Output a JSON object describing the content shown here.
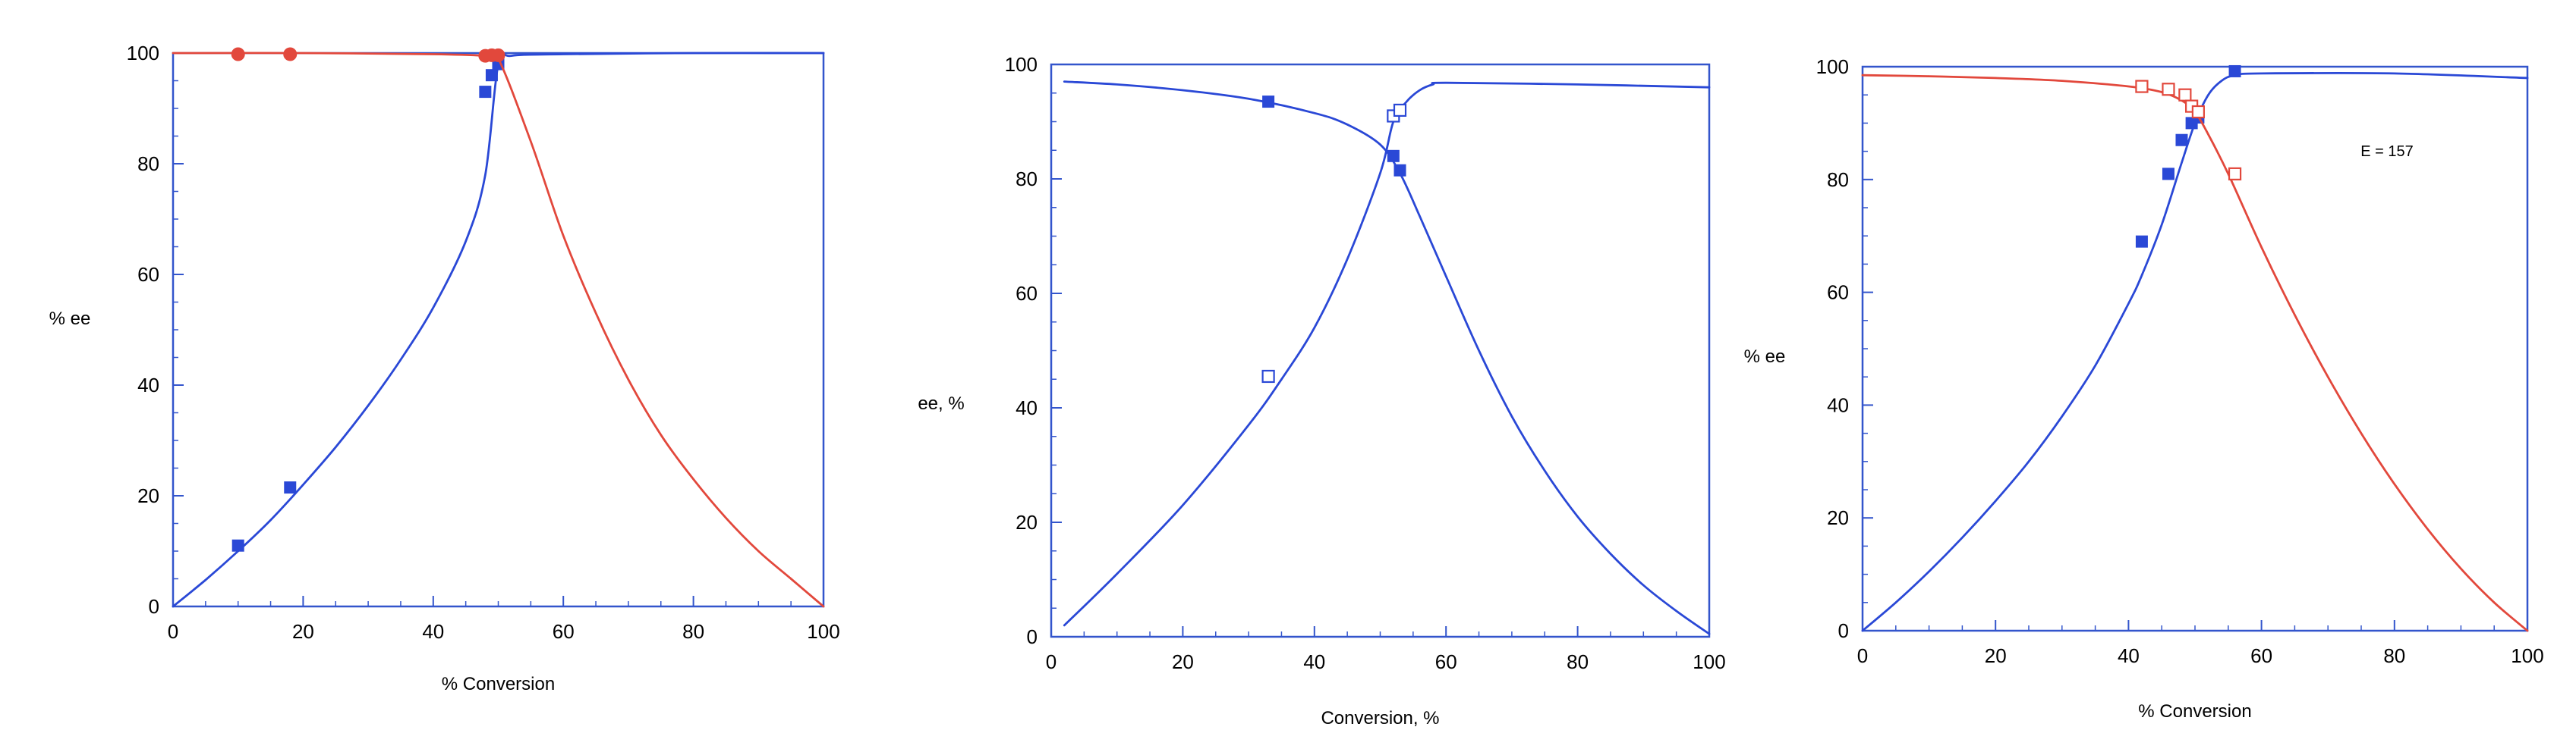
{
  "chart_data": [
    {
      "type": "line",
      "xlabel": "%  Conversion",
      "ylabel": "% ee",
      "xlim": [
        0,
        100
      ],
      "ylim": [
        0,
        100
      ],
      "xticks": [
        "0",
        "20",
        "40",
        "60",
        "80",
        "100"
      ],
      "yticks": [
        "0",
        "20",
        "40",
        "60",
        "80",
        "100"
      ],
      "grid": false,
      "colors": {
        "axis": "#3355cc",
        "blue": "#2a48d6",
        "red": "#e2483c"
      },
      "series": [
        {
          "color": "#2a48d6",
          "curve": [
            [
              0,
              0
            ],
            [
              5,
              4.8
            ],
            [
              10,
              10
            ],
            [
              15,
              15.6
            ],
            [
              20,
              22
            ],
            [
              25,
              28.8
            ],
            [
              30,
              36.3
            ],
            [
              35,
              44.6
            ],
            [
              40,
              54
            ],
            [
              45,
              66
            ],
            [
              48,
              78
            ],
            [
              50,
              98
            ],
            [
              52,
              99.5
            ],
            [
              60,
              99.8
            ],
            [
              80,
              100
            ],
            [
              100,
              100
            ]
          ],
          "markers": {
            "shape": "square-filled",
            "points": [
              [
                10,
                11
              ],
              [
                18,
                21.5
              ],
              [
                48,
                93
              ],
              [
                49,
                96
              ],
              [
                50,
                98
              ]
            ]
          }
        },
        {
          "color": "#e2483c",
          "curve": [
            [
              0,
              100
            ],
            [
              20,
              100
            ],
            [
              40,
              99.8
            ],
            [
              48,
              99.5
            ],
            [
              50,
              99
            ],
            [
              55,
              84
            ],
            [
              60,
              67
            ],
            [
              65,
              53
            ],
            [
              70,
              41
            ],
            [
              75,
              31
            ],
            [
              80,
              23
            ],
            [
              85,
              16
            ],
            [
              90,
              10
            ],
            [
              95,
              5
            ],
            [
              100,
              0
            ]
          ],
          "markers": {
            "shape": "circle-filled",
            "points": [
              [
                10,
                99.8
              ],
              [
                18,
                99.8
              ],
              [
                48,
                99.5
              ],
              [
                49,
                99.6
              ],
              [
                50,
                99.6
              ]
            ]
          }
        }
      ]
    },
    {
      "type": "line",
      "xlabel": "Conversion,  %",
      "ylabel": "ee,  %",
      "xlim": [
        0,
        100
      ],
      "ylim": [
        0,
        100
      ],
      "xticks": [
        "0",
        "20",
        "40",
        "60",
        "80",
        "100"
      ],
      "yticks": [
        "0",
        "20",
        "40",
        "60",
        "80",
        "100"
      ],
      "grid": false,
      "colors": {
        "axis": "#3355cc",
        "blue": "#2a48d6"
      },
      "series": [
        {
          "color": "#2a48d6",
          "curve": [
            [
              2,
              97
            ],
            [
              10,
              96.5
            ],
            [
              20,
              95.5
            ],
            [
              30,
              94
            ],
            [
              40,
              91.5
            ],
            [
              45,
              89.5
            ],
            [
              50,
              86
            ],
            [
              53,
              81
            ],
            [
              56,
              73.5
            ],
            [
              60,
              63
            ],
            [
              65,
              50
            ],
            [
              70,
              38.5
            ],
            [
              75,
              29
            ],
            [
              80,
              21
            ],
            [
              85,
              14.5
            ],
            [
              90,
              9
            ],
            [
              95,
              4.5
            ],
            [
              100,
              0.5
            ]
          ],
          "markers": {
            "shape": "square-filled",
            "points": [
              [
                33,
                93.5
              ],
              [
                52,
                84
              ],
              [
                53,
                81.5
              ]
            ]
          }
        },
        {
          "color": "#2a48d6",
          "curve": [
            [
              2,
              2
            ],
            [
              10,
              11
            ],
            [
              20,
              23
            ],
            [
              30,
              37
            ],
            [
              35,
              45
            ],
            [
              40,
              54
            ],
            [
              45,
              66
            ],
            [
              50,
              81
            ],
            [
              52,
              90
            ],
            [
              54,
              93.5
            ],
            [
              56,
              95.5
            ],
            [
              58,
              96.5
            ],
            [
              60,
              96.8
            ],
            [
              80,
              96.5
            ],
            [
              100,
              96
            ]
          ],
          "markers": {
            "shape": "square-open",
            "points": [
              [
                33,
                45.5
              ],
              [
                52,
                91
              ],
              [
                53,
                92
              ]
            ]
          }
        }
      ]
    },
    {
      "type": "line",
      "xlabel": "%  Conversion",
      "ylabel": "% ee",
      "xlim": [
        0,
        100
      ],
      "ylim": [
        0,
        100
      ],
      "xticks": [
        "0",
        "20",
        "40",
        "60",
        "80",
        "100"
      ],
      "yticks": [
        "0",
        "20",
        "40",
        "60",
        "80",
        "100"
      ],
      "grid": false,
      "annotation": "E = 157",
      "colors": {
        "axis": "#3355cc",
        "blue": "#2a48d6",
        "red": "#e2483c"
      },
      "series": [
        {
          "color": "#2a48d6",
          "curve": [
            [
              0,
              0
            ],
            [
              5,
              5
            ],
            [
              10,
              10.5
            ],
            [
              15,
              16.5
            ],
            [
              20,
              23
            ],
            [
              25,
              30
            ],
            [
              30,
              38
            ],
            [
              35,
              47
            ],
            [
              40,
              58
            ],
            [
              42,
              63
            ],
            [
              45,
              72
            ],
            [
              48,
              83
            ],
            [
              50,
              90
            ],
            [
              52,
              95
            ],
            [
              54,
              97.5
            ],
            [
              56,
              98.5
            ],
            [
              60,
              98.8
            ],
            [
              80,
              98.8
            ],
            [
              100,
              98
            ]
          ],
          "markers": {
            "shape": "square-filled",
            "points": [
              [
                42,
                69
              ],
              [
                46,
                81
              ],
              [
                48,
                87
              ],
              [
                49.5,
                90
              ],
              [
                50.5,
                91
              ],
              [
                56,
                99.2
              ]
            ]
          }
        },
        {
          "color": "#e2483c",
          "curve": [
            [
              0,
              98.5
            ],
            [
              10,
              98.3
            ],
            [
              20,
              98
            ],
            [
              30,
              97.5
            ],
            [
              40,
              96.5
            ],
            [
              45,
              95.5
            ],
            [
              48,
              94
            ],
            [
              50,
              92
            ],
            [
              52,
              88
            ],
            [
              55,
              81
            ],
            [
              60,
              68
            ],
            [
              65,
              56
            ],
            [
              70,
              45
            ],
            [
              75,
              35
            ],
            [
              80,
              26
            ],
            [
              85,
              18
            ],
            [
              90,
              11
            ],
            [
              95,
              5
            ],
            [
              100,
              0
            ]
          ],
          "markers": {
            "shape": "square-open",
            "points": [
              [
                42,
                96.5
              ],
              [
                46,
                96
              ],
              [
                48.5,
                95
              ],
              [
                49.5,
                93
              ],
              [
                50.5,
                92
              ],
              [
                56,
                81
              ]
            ]
          }
        }
      ]
    }
  ]
}
